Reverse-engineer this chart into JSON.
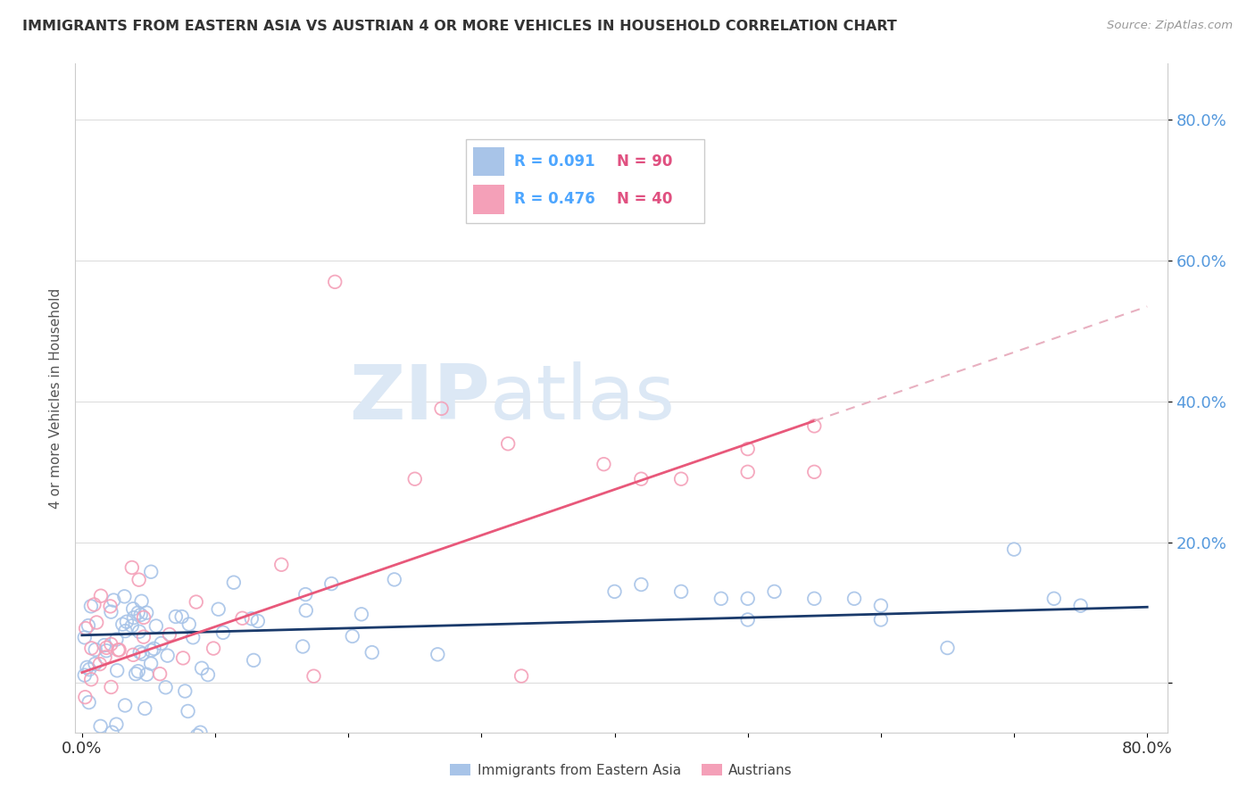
{
  "title": "IMMIGRANTS FROM EASTERN ASIA VS AUSTRIAN 4 OR MORE VEHICLES IN HOUSEHOLD CORRELATION CHART",
  "source": "Source: ZipAtlas.com",
  "ylabel": "4 or more Vehicles in Household",
  "blue_color": "#a8c4e8",
  "pink_color": "#f4a0b8",
  "blue_line_color": "#1a3a6b",
  "pink_line_solid_color": "#e8587a",
  "pink_line_dash_color": "#e8b0c0",
  "watermark_zip": "ZIP",
  "watermark_atlas": "atlas",
  "watermark_color": "#dce8f5",
  "legend_box_color": "#f0f0f0",
  "R_color": "#4da6ff",
  "N_color": "#e05080",
  "tick_color_blue": "#5599dd",
  "title_color": "#333333",
  "source_color": "#999999",
  "ylabel_color": "#555555",
  "grid_color": "#dddddd",
  "spine_color": "#cccccc"
}
